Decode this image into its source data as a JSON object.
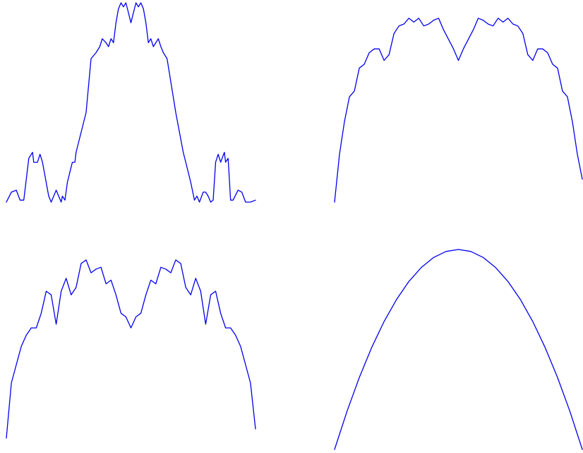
{
  "chart_data": [
    {
      "type": "line",
      "panel": "top-left",
      "grid": false,
      "axes_visible": false,
      "xlim": [
        0,
        1
      ],
      "ylim": [
        0,
        1
      ],
      "series": [
        {
          "color": "#0000ee",
          "x": [
            0,
            0.02,
            0.04,
            0.055,
            0.07,
            0.09,
            0.1,
            0.105,
            0.11,
            0.125,
            0.135,
            0.145,
            0.17,
            0.18,
            0.19,
            0.2,
            0.21,
            0.22,
            0.225,
            0.235,
            0.245,
            0.255,
            0.265,
            0.275,
            0.28,
            0.32,
            0.34,
            0.36,
            0.375,
            0.385,
            0.4,
            0.41,
            0.42,
            0.43,
            0.44,
            0.45,
            0.46,
            0.47,
            0.48,
            0.49,
            0.5,
            0.51,
            0.52,
            0.53,
            0.54,
            0.55,
            0.56,
            0.57,
            0.58,
            0.59,
            0.6,
            0.61,
            0.62,
            0.63,
            0.645,
            0.68,
            0.71,
            0.72,
            0.73,
            0.74,
            0.755,
            0.765,
            0.775,
            0.79,
            0.8,
            0.81,
            0.82,
            0.83,
            0.84,
            0.85,
            0.86,
            0.875,
            0.88,
            0.89,
            0.9,
            0.91,
            0.93,
            0.945,
            0.96,
            0.98,
            1
          ],
          "y": [
            0,
            0.05,
            0.06,
            0.01,
            0.01,
            0.22,
            0.24,
            0.25,
            0.2,
            0.2,
            0.24,
            0.2,
            0.03,
            0,
            0.03,
            0.06,
            0.03,
            0,
            0.03,
            0.01,
            0.1,
            0.15,
            0.2,
            0.2,
            0.25,
            0.45,
            0.72,
            0.75,
            0.78,
            0.82,
            0.8,
            0.78,
            0.82,
            0.8,
            0.9,
            0.97,
            1.0,
            0.98,
            1.0,
            0.95,
            0.9,
            0.95,
            1.0,
            0.98,
            1.0,
            0.97,
            0.9,
            0.8,
            0.82,
            0.78,
            0.8,
            0.82,
            0.78,
            0.75,
            0.72,
            0.45,
            0.25,
            0.2,
            0.15,
            0.1,
            0.01,
            0.03,
            0,
            0.05,
            0.05,
            0.03,
            0,
            0.01,
            0.2,
            0.24,
            0.2,
            0.25,
            0.2,
            0.22,
            0.01,
            0.01,
            0.06,
            0.05,
            0,
            0,
            0.01
          ]
        }
      ]
    },
    {
      "type": "line",
      "panel": "top-right",
      "grid": false,
      "axes_visible": false,
      "xlim": [
        0,
        1
      ],
      "ylim": [
        0,
        1
      ],
      "series": [
        {
          "color": "#0000ee",
          "x": [
            0,
            0.02,
            0.04,
            0.06,
            0.08,
            0.1,
            0.12,
            0.14,
            0.16,
            0.18,
            0.2,
            0.22,
            0.24,
            0.26,
            0.28,
            0.3,
            0.32,
            0.34,
            0.36,
            0.38,
            0.4,
            0.42,
            0.44,
            0.46,
            0.48,
            0.5,
            0.52,
            0.54,
            0.56,
            0.58,
            0.6,
            0.62,
            0.64,
            0.66,
            0.68,
            0.7,
            0.72,
            0.74,
            0.76,
            0.78,
            0.8,
            0.82,
            0.84,
            0.86,
            0.88,
            0.9,
            0.92,
            0.94,
            0.96,
            0.98,
            1
          ],
          "y": [
            0,
            0.25,
            0.42,
            0.55,
            0.58,
            0.7,
            0.72,
            0.78,
            0.8,
            0.8,
            0.74,
            0.77,
            0.88,
            0.92,
            0.93,
            0.96,
            0.94,
            0.96,
            0.92,
            0.93,
            0.95,
            0.96,
            0.9,
            0.85,
            0.8,
            0.74,
            0.8,
            0.85,
            0.9,
            0.96,
            0.95,
            0.93,
            0.92,
            0.96,
            0.94,
            0.96,
            0.93,
            0.92,
            0.88,
            0.77,
            0.74,
            0.8,
            0.8,
            0.78,
            0.72,
            0.7,
            0.58,
            0.55,
            0.42,
            0.25,
            0.12
          ]
        }
      ]
    },
    {
      "type": "line",
      "panel": "bottom-left",
      "grid": false,
      "axes_visible": false,
      "xlim": [
        0,
        1
      ],
      "ylim": [
        0,
        1
      ],
      "series": [
        {
          "color": "#0000ee",
          "x": [
            0,
            0.02,
            0.04,
            0.06,
            0.08,
            0.1,
            0.12,
            0.14,
            0.16,
            0.18,
            0.2,
            0.22,
            0.24,
            0.26,
            0.28,
            0.3,
            0.32,
            0.34,
            0.36,
            0.38,
            0.4,
            0.42,
            0.44,
            0.46,
            0.48,
            0.5,
            0.52,
            0.54,
            0.56,
            0.58,
            0.6,
            0.62,
            0.64,
            0.66,
            0.68,
            0.7,
            0.72,
            0.74,
            0.76,
            0.78,
            0.8,
            0.82,
            0.84,
            0.86,
            0.88,
            0.9,
            0.92,
            0.94,
            0.96,
            0.98,
            1
          ],
          "y": [
            0,
            0.3,
            0.4,
            0.5,
            0.56,
            0.6,
            0.6,
            0.68,
            0.8,
            0.78,
            0.62,
            0.8,
            0.87,
            0.78,
            0.82,
            0.95,
            0.97,
            0.9,
            0.92,
            0.93,
            0.84,
            0.86,
            0.78,
            0.68,
            0.66,
            0.6,
            0.66,
            0.68,
            0.78,
            0.86,
            0.84,
            0.93,
            0.92,
            0.9,
            0.97,
            0.95,
            0.82,
            0.78,
            0.87,
            0.8,
            0.62,
            0.78,
            0.8,
            0.68,
            0.6,
            0.6,
            0.56,
            0.5,
            0.4,
            0.3,
            0.05
          ]
        }
      ]
    },
    {
      "type": "line",
      "panel": "bottom-right",
      "grid": false,
      "axes_visible": false,
      "xlim": [
        0,
        1
      ],
      "ylim": [
        0,
        1
      ],
      "series": [
        {
          "color": "#0000ee",
          "x": [
            0,
            0.05,
            0.1,
            0.15,
            0.2,
            0.25,
            0.3,
            0.35,
            0.4,
            0.45,
            0.5,
            0.55,
            0.6,
            0.65,
            0.7,
            0.75,
            0.8,
            0.85,
            0.9,
            0.95,
            1
          ],
          "y": [
            0,
            0.19,
            0.36,
            0.51,
            0.64,
            0.75,
            0.84,
            0.91,
            0.96,
            0.99,
            1.0,
            0.99,
            0.96,
            0.91,
            0.84,
            0.75,
            0.64,
            0.51,
            0.36,
            0.19,
            0
          ]
        }
      ]
    }
  ]
}
